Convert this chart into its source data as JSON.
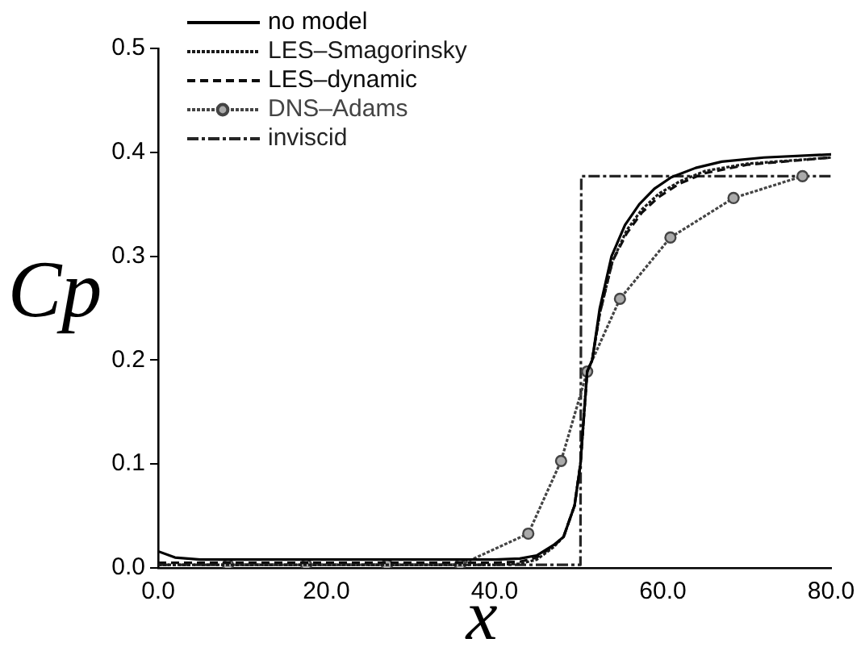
{
  "chart_data": {
    "type": "line",
    "xlabel": "x",
    "ylabel": "Cp",
    "xlim": [
      0,
      80
    ],
    "xticks": [
      {
        "value": 0,
        "label": "0.0"
      },
      {
        "value": 20,
        "label": "20.0"
      },
      {
        "value": 40,
        "label": "40.0"
      },
      {
        "value": 60,
        "label": "60.0"
      },
      {
        "value": 80,
        "label": "80.0"
      }
    ],
    "ylim": [
      0,
      0.5
    ],
    "yticks": [
      {
        "value": 0,
        "label": "0.0"
      },
      {
        "value": 0.1,
        "label": "0.1"
      },
      {
        "value": 0.2,
        "label": "0.2"
      },
      {
        "value": 0.3,
        "label": "0.3"
      },
      {
        "value": 0.4,
        "label": "0.4"
      },
      {
        "value": 0.5,
        "label": "0.5"
      }
    ],
    "grid": false,
    "legend": "top left",
    "marker": "none",
    "series": [
      {
        "name": "no model",
        "color": "#000000",
        "line_style": "solid",
        "x": [
          0,
          2,
          5,
          20,
          40,
          43,
          45,
          47,
          48.2,
          49.5,
          50.2,
          51,
          51.6,
          52.5,
          53.9,
          55.5,
          57.2,
          59,
          61,
          63.9,
          67,
          72,
          80
        ],
        "values": [
          0.016,
          0.01,
          0.008,
          0.008,
          0.008,
          0.009,
          0.012,
          0.022,
          0.03,
          0.06,
          0.1,
          0.189,
          0.2,
          0.25,
          0.3,
          0.33,
          0.35,
          0.365,
          0.376,
          0.385,
          0.391,
          0.395,
          0.398
        ]
      },
      {
        "name": "LES–Smagorinsky",
        "color": "#1a1a1a",
        "line_style": "dotted",
        "x": [
          0,
          20,
          40,
          43,
          45,
          47,
          48.2,
          49.5,
          50.2,
          51,
          51.6,
          52.5,
          54,
          55.7,
          57.5,
          59.5,
          62,
          65,
          70,
          80
        ],
        "values": [
          0.003,
          0.003,
          0.003,
          0.004,
          0.008,
          0.02,
          0.03,
          0.06,
          0.1,
          0.189,
          0.2,
          0.245,
          0.295,
          0.325,
          0.345,
          0.36,
          0.372,
          0.382,
          0.389,
          0.395
        ]
      },
      {
        "name": "LES–dynamic",
        "color": "#0d0d0d",
        "line_style": "dashed",
        "x": [
          0,
          20,
          40,
          43,
          45,
          47,
          48.2,
          49.5,
          50.2,
          51,
          51.6,
          52.5,
          54,
          55.7,
          57.5,
          59.5,
          62,
          65,
          70,
          80
        ],
        "values": [
          0.005,
          0.005,
          0.005,
          0.006,
          0.01,
          0.021,
          0.03,
          0.06,
          0.1,
          0.189,
          0.2,
          0.245,
          0.295,
          0.322,
          0.342,
          0.357,
          0.37,
          0.38,
          0.388,
          0.395
        ]
      },
      {
        "name": "DNS–Adams",
        "color": "#444444",
        "line_style": "dotted",
        "marker": "circle",
        "x": [
          8.3,
          17.6,
          27.2,
          35.9,
          44,
          47.9,
          51,
          54.9,
          60.9,
          68.4,
          76.6
        ],
        "values": [
          0.003,
          0.003,
          0.003,
          0.003,
          0.033,
          0.103,
          0.189,
          0.259,
          0.318,
          0.356,
          0.377
        ]
      },
      {
        "name": "inviscid",
        "color": "#262626",
        "line_style": "dashdot",
        "x": [
          0,
          50.2,
          50.3,
          80
        ],
        "values": [
          0.003,
          0.003,
          0.377,
          0.377
        ]
      }
    ]
  }
}
